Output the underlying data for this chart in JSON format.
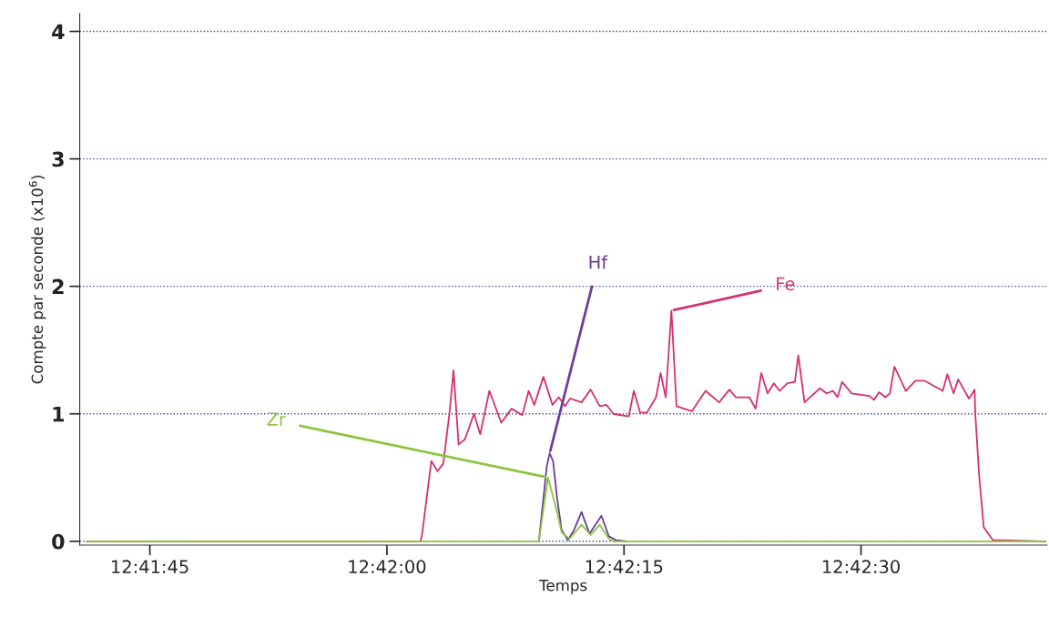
{
  "chart_data": {
    "type": "line",
    "xlabel": "Temps",
    "ylabel": "Compte par seconde (x10$^{6}$)",
    "xlim": [
      12.6946,
      12.7116
    ],
    "xticks": [
      {
        "value": 12.695833,
        "label": "12:41:45"
      },
      {
        "value": 12.7,
        "label": "12:42:00"
      },
      {
        "value": 12.704167,
        "label": "12:42:15"
      },
      {
        "value": 12.708333,
        "label": "12:42:30"
      }
    ],
    "ylim": [
      -0.03,
      4.14
    ],
    "yticks": [
      0,
      1,
      2,
      3,
      4
    ],
    "grid": "y",
    "legend": false,
    "marker": "none",
    "line_style": "solid",
    "series": [
      {
        "name": "Fe",
        "color": "#d6306e",
        "x": [
          12.69472,
          12.70059,
          12.70062,
          12.70078,
          12.70089,
          12.70099,
          12.7011,
          12.70117,
          12.70126,
          12.70137,
          12.70153,
          12.70164,
          12.7018,
          12.70201,
          12.70219,
          12.70238,
          12.70249,
          12.70259,
          12.70275,
          12.70291,
          12.70302,
          12.70313,
          12.70322,
          12.70342,
          12.70358,
          12.70374,
          12.70386,
          12.70398,
          12.70425,
          12.70434,
          12.70445,
          12.70457,
          12.70473,
          12.70481,
          12.7049,
          12.705,
          12.70509,
          12.70536,
          12.7056,
          12.70584,
          12.70602,
          12.70613,
          12.70637,
          12.70648,
          12.70658,
          12.70669,
          12.7068,
          12.7069,
          12.70704,
          12.70717,
          12.70723,
          12.70734,
          12.70761,
          12.70773,
          12.70784,
          12.70792,
          12.708,
          12.70817,
          12.70848,
          12.70856,
          12.70865,
          12.70876,
          12.70884,
          12.70892,
          12.70912,
          12.70929,
          12.70945,
          12.70977,
          12.70985,
          12.70996,
          12.71004,
          12.71023,
          12.71033,
          12.71034,
          12.71041,
          12.71049,
          12.71065,
          12.71156
        ],
        "values": [
          0,
          0,
          0.06,
          0.63,
          0.55,
          0.61,
          1.01,
          1.34,
          0.76,
          0.8,
          1.0,
          0.84,
          1.18,
          0.93,
          1.04,
          0.99,
          1.18,
          1.07,
          1.29,
          1.07,
          1.13,
          1.06,
          1.12,
          1.09,
          1.19,
          1.06,
          1.07,
          1.0,
          0.98,
          1.18,
          1.01,
          1.01,
          1.13,
          1.32,
          1.13,
          1.81,
          1.06,
          1.02,
          1.18,
          1.09,
          1.19,
          1.13,
          1.13,
          1.04,
          1.32,
          1.16,
          1.24,
          1.18,
          1.24,
          1.25,
          1.46,
          1.09,
          1.2,
          1.16,
          1.18,
          1.13,
          1.25,
          1.16,
          1.14,
          1.11,
          1.17,
          1.13,
          1.16,
          1.37,
          1.18,
          1.26,
          1.26,
          1.18,
          1.31,
          1.16,
          1.27,
          1.12,
          1.19,
          1.01,
          0.51,
          0.11,
          0.01,
          0
        ]
      },
      {
        "name": "Hf",
        "color": "#6a3d9a",
        "x": [
          12.70267,
          12.70281,
          12.70286,
          12.70292,
          12.70299,
          12.70307,
          12.70318,
          12.70329,
          12.70342,
          12.70356,
          12.70377,
          12.7039,
          12.70402,
          12.70421
        ],
        "values": [
          0,
          0.59,
          0.69,
          0.63,
          0.34,
          0.09,
          0.01,
          0.09,
          0.23,
          0.06,
          0.2,
          0.04,
          0.01,
          0
        ]
      },
      {
        "name": "Zr",
        "color": "#8cc63f",
        "x": [
          12.69472,
          12.70267,
          12.70283,
          12.70299,
          12.70307,
          12.70321,
          12.70342,
          12.70358,
          12.70374,
          12.7039,
          12.70398,
          12.71156
        ],
        "values": [
          0,
          0,
          0.5,
          0.23,
          0.07,
          0.02,
          0.13,
          0.05,
          0.13,
          0.02,
          0,
          0
        ]
      }
    ]
  }
}
